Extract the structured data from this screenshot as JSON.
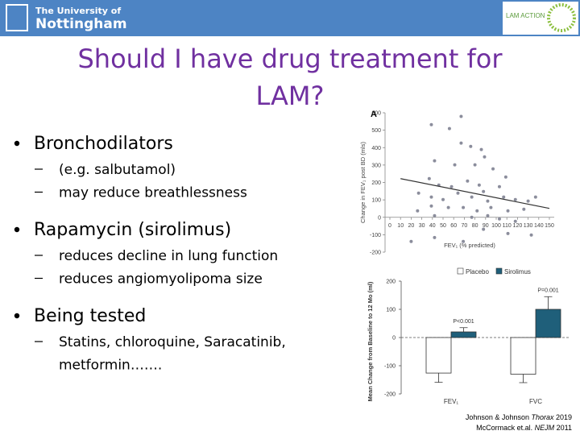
{
  "header": {
    "logo_line1": "The University of",
    "logo_line2": "Nottingham",
    "partner": "LAM ACTION"
  },
  "title": [
    "Should I have drug treatment for",
    "LAM?"
  ],
  "bullets": [
    {
      "text": "Bronchodilators",
      "subs": [
        "(e.g. salbutamol)",
        "may reduce breathlessness"
      ]
    },
    {
      "text": "Rapamycin (sirolimus)",
      "subs": [
        "reduces decline in lung function",
        "reduces angiomyolipoma size"
      ]
    },
    {
      "text": "Being tested",
      "subs": [
        "Statins, chloroquine, Saracatinib,",
        "metformin……."
      ]
    }
  ],
  "charts": [
    {
      "type": "scatter",
      "panel": "A",
      "x_label": "FEV₁ (% predicted)",
      "y_label": "Change in FEV₁ post BD (mls)",
      "color": "#8b8d9c",
      "x": [
        39,
        67,
        56,
        67,
        76,
        86,
        89,
        42,
        61,
        80,
        97,
        37,
        46,
        58,
        73,
        84,
        88,
        103,
        109,
        27,
        39,
        50,
        64,
        77,
        92,
        107,
        118,
        130,
        137,
        39,
        55,
        69,
        82,
        95,
        111,
        126,
        26,
        42,
        77,
        92,
        103,
        118,
        88,
        111,
        133,
        42,
        69,
        20
      ],
      "values": [
        532,
        579,
        509,
        426,
        407,
        389,
        347,
        324,
        301,
        301,
        278,
        222,
        185,
        176,
        208,
        185,
        148,
        176,
        231,
        139,
        116,
        102,
        139,
        116,
        93,
        116,
        102,
        93,
        116,
        65,
        56,
        56,
        37,
        56,
        37,
        46,
        37,
        9,
        0,
        9,
        -9,
        -23,
        -69,
        -93,
        -102,
        -116,
        -139,
        -139
      ],
      "trend": {
        "x": [
          10,
          150
        ],
        "values": [
          222,
          51
        ]
      },
      "xlim": [
        0,
        150
      ],
      "xticks": [
        0,
        10,
        20,
        30,
        40,
        50,
        60,
        70,
        80,
        90,
        100,
        110,
        120,
        130,
        140,
        150
      ],
      "ylim": [
        -200,
        600
      ],
      "yticks": [
        -200,
        -100,
        0,
        100,
        200,
        300,
        400,
        500,
        600
      ]
    },
    {
      "type": "bar",
      "y_label": "Mean Change from Baseline to 12 Mo (ml)",
      "categories": [
        "FEV₁",
        "FVC"
      ],
      "series": [
        {
          "name": "Placebo",
          "color": "#ffffff",
          "values": [
            -126,
            -130
          ],
          "errors": [
            33,
            30
          ]
        },
        {
          "name": "Sirolimus",
          "color": "#1f5f7a",
          "values": [
            20,
            100
          ],
          "errors": [
            15,
            45
          ]
        }
      ],
      "annotations": [
        "P<0.001",
        "P=0.001"
      ],
      "ylim": [
        -200,
        200
      ],
      "yticks": [
        -200,
        -100,
        0,
        100,
        200
      ]
    }
  ],
  "citations": [
    {
      "authors": "Johnson & Johnson ",
      "journal": "Thorax",
      "year": " 2019"
    },
    {
      "authors": "McCormack et.al. ",
      "journal": "NEJM",
      "year": " 2011"
    }
  ]
}
